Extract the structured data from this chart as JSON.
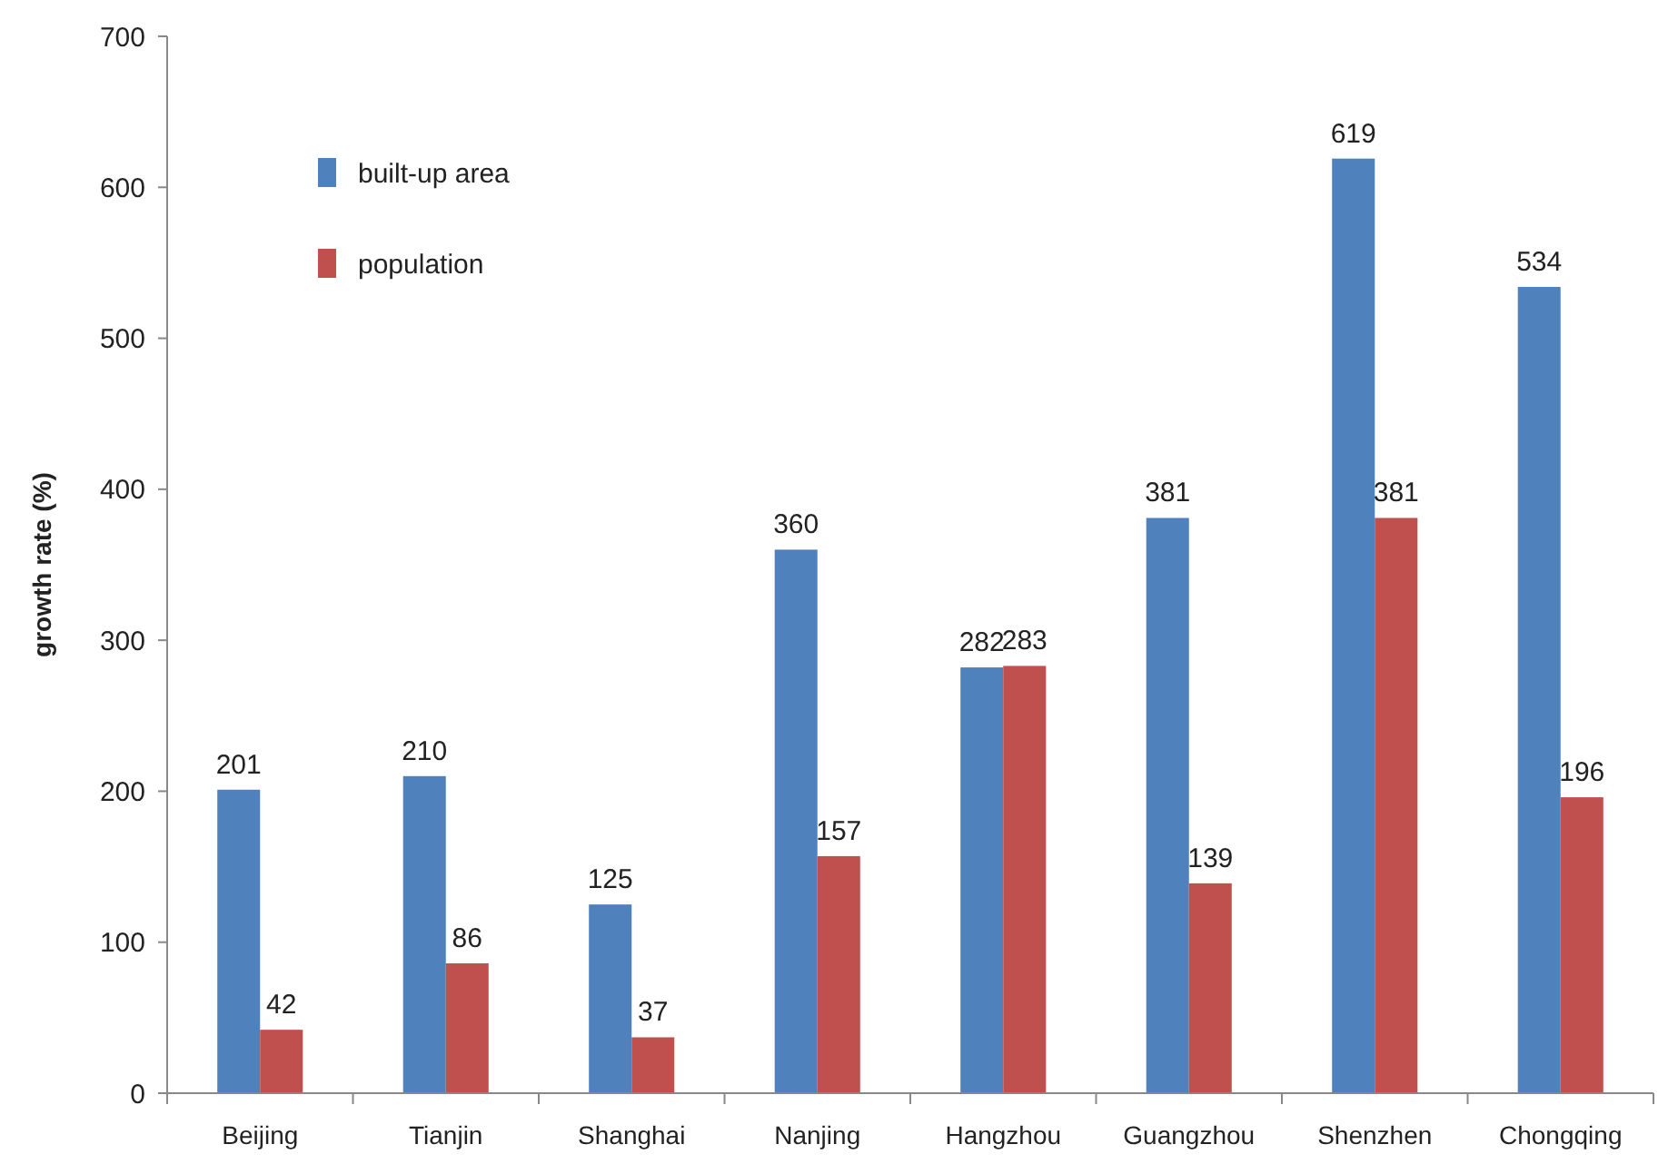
{
  "chart_data": {
    "type": "bar",
    "ylabel": "growth rate (%)",
    "categories": [
      "Beijing",
      "Tianjin",
      "Shanghai",
      "Nanjing",
      "Hangzhou",
      "Guangzhou",
      "Shenzhen",
      "Chongqing"
    ],
    "series": [
      {
        "name": "built-up area",
        "color": "#4f81bd",
        "values": [
          201,
          210,
          125,
          360,
          282,
          381,
          619,
          534
        ]
      },
      {
        "name": "population",
        "color": "#c0504d",
        "values": [
          42,
          86,
          37,
          157,
          283,
          139,
          381,
          196
        ]
      }
    ],
    "ylim": [
      0,
      700
    ],
    "yticks": [
      0,
      100,
      200,
      300,
      400,
      500,
      600,
      700
    ],
    "grid": false,
    "legend": "top left",
    "data_labels": true
  }
}
